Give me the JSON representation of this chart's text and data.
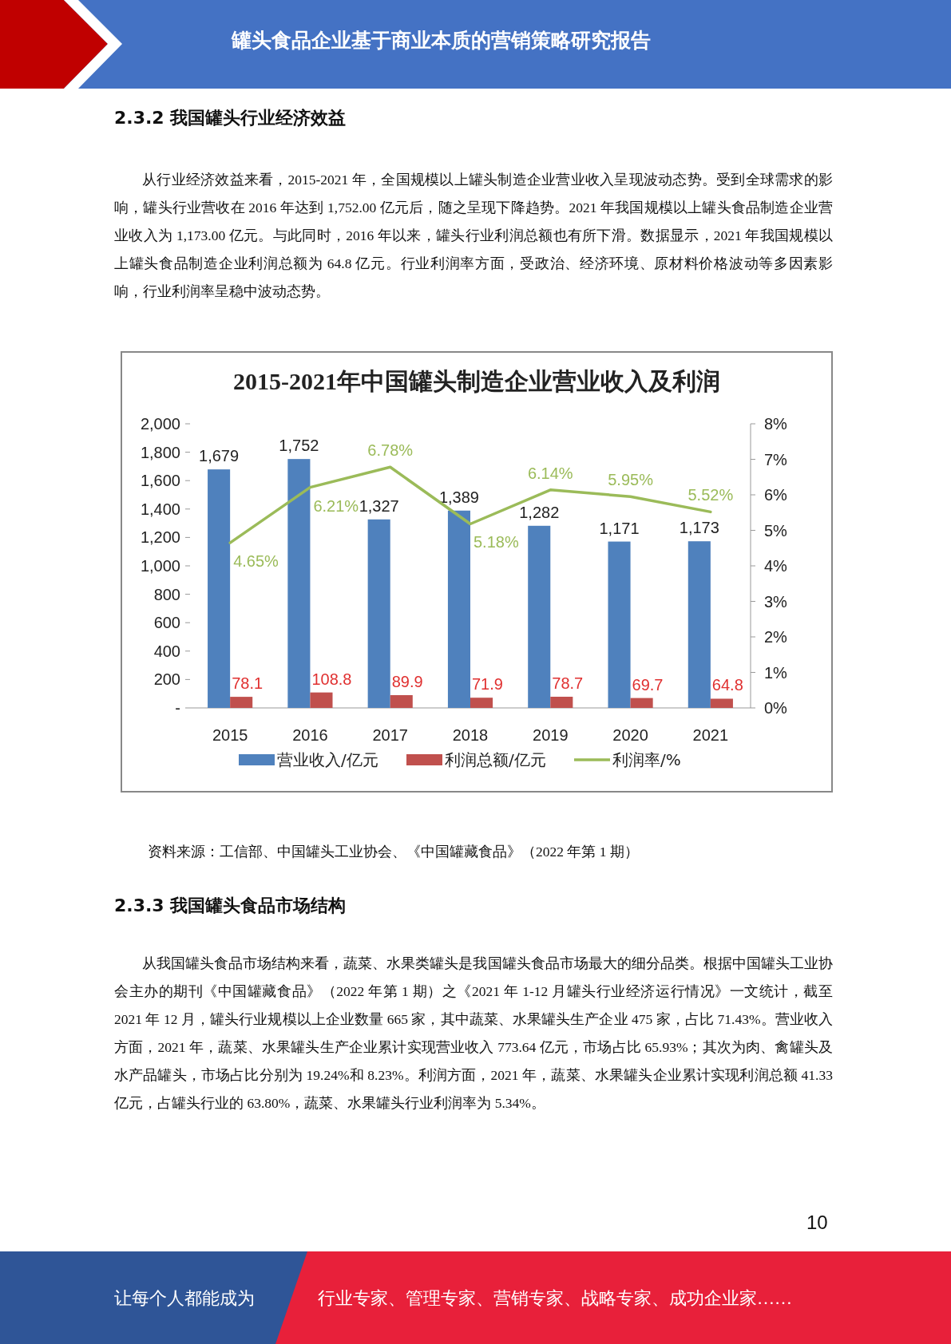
{
  "chart_data": {
    "type": "bar",
    "title": "2015-2021年中国罐头制造企业营业收入及利润",
    "categories": [
      "2015",
      "2016",
      "2017",
      "2018",
      "2019",
      "2020",
      "2021"
    ],
    "series": [
      {
        "name": "营业收入/亿元",
        "color": "#4f81bd",
        "values": [
          1679,
          1752,
          1327,
          1389,
          1282,
          1171,
          1173
        ],
        "value_labels": [
          "1,679",
          "1,752",
          "1,327",
          "1,389",
          "1,282",
          "1,171",
          "1,173"
        ]
      },
      {
        "name": "利润总额/亿元",
        "color": "#c0504d",
        "values": [
          78.1,
          108.8,
          89.9,
          71.9,
          78.7,
          69.7,
          64.8
        ],
        "value_labels": [
          "78.1",
          "108.8",
          "89.9",
          "71.9",
          "78.7",
          "69.7",
          "64.8"
        ]
      },
      {
        "name": "利润率/%",
        "type": "line",
        "axis": "y2",
        "color": "#9bbb59",
        "values": [
          4.65,
          6.21,
          6.78,
          5.18,
          6.14,
          5.95,
          5.52
        ],
        "value_labels": [
          "4.65%",
          "6.21%",
          "6.78%",
          "5.18%",
          "6.14%",
          "5.95%",
          "5.52%"
        ]
      }
    ],
    "ylim": [
      0,
      2000
    ],
    "yticks": [
      {
        "value": 0,
        "label": "-"
      },
      {
        "value": 200,
        "label": "200"
      },
      {
        "value": 400,
        "label": "400"
      },
      {
        "value": 600,
        "label": "600"
      },
      {
        "value": 800,
        "label": "800"
      },
      {
        "value": 1000,
        "label": "1,000"
      },
      {
        "value": 1200,
        "label": "1,200"
      },
      {
        "value": 1400,
        "label": "1,400"
      },
      {
        "value": 1600,
        "label": "1,600"
      },
      {
        "value": 1800,
        "label": "1,800"
      },
      {
        "value": 2000,
        "label": "2,000"
      }
    ],
    "y2lim": [
      0,
      8
    ],
    "y2ticks": [
      {
        "value": 0,
        "label": "0%"
      },
      {
        "value": 1,
        "label": "1%"
      },
      {
        "value": 2,
        "label": "2%"
      },
      {
        "value": 3,
        "label": "3%"
      },
      {
        "value": 4,
        "label": "4%"
      },
      {
        "value": 5,
        "label": "5%"
      },
      {
        "value": 6,
        "label": "6%"
      },
      {
        "value": 7,
        "label": "7%"
      },
      {
        "value": 8,
        "label": "8%"
      }
    ],
    "legend": "bottom",
    "grid": false,
    "annotations": [
      "罐头食品企业基于商业本质的营销策略研究报告",
      "2.3.2 我国罐头行业经济效益",
      "从行业经济效益来看，2015-2021 年，全国规模以上罐头制造企业营业收入呈现波动态势。受到全球需求的影响，罐头行业营收在 2016 年达到 1,752.00 亿元后，随之呈现下降趋势。2021 年我国规模以上罐头食品制造企业营业收入为 1,173.00 亿元。与此同时，2016 年以来，罐头行业利润总额也有所下滑。数据显示，2021 年我国规模以上罐头食品制造企业利润总额为 64.8 亿元。行业利润率方面，受政治、经济环境、原材料价格波动等多因素影响，行业利润率呈稳中波动态势。",
      "资料来源：工信部、中国罐头工业协会、《中国罐藏食品》（2022 年第 1 期）",
      "2.3.3 我国罐头食品市场结构",
      "从我国罐头食品市场结构来看，蔬菜、水果类罐头是我国罐头食品市场最大的细分品类。根据中国罐头工业协会主办的期刊《中国罐藏食品》（2022 年第 1 期）之《2021 年 1-12 月罐头行业经济运行情况》一文统计，截至 2021 年 12 月，罐头行业规模以上企业数量 665 家，其中蔬菜、水果罐头生产企业 475 家，占比 71.43%。营业收入方面，2021 年，蔬菜、水果罐头生产企业累计实现营业收入 773.64 亿元，市场占比 65.93%；其次为肉、禽罐头及水产品罐头，市场占比分别为 19.24%和 8.23%。利润方面，2021 年，蔬菜、水果罐头企业累计实现利润总额 41.33 亿元，占罐头行业的 63.80%，蔬菜、水果罐头行业利润率为 5.34%。",
      "10",
      "让每个人都能成为",
      "行业专家、管理专家、营销专家、战略专家、成功企业家……"
    ]
  }
}
